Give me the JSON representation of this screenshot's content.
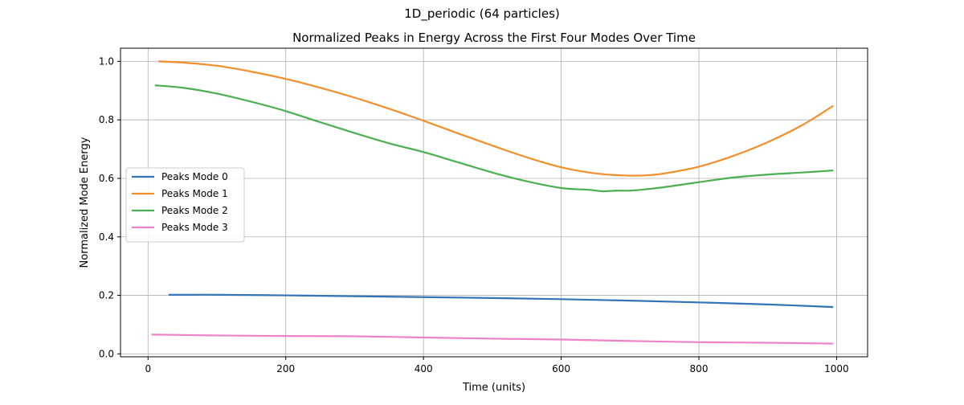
{
  "figure": {
    "suptitle": "1D_periodic (64 particles)"
  },
  "chart_data": {
    "type": "line",
    "title": "Normalized Peaks in Energy Across the First Four Modes Over Time",
    "xlabel": "Time (units)",
    "ylabel": "Normalized Mode Energy",
    "xlim": [
      -40,
      1045
    ],
    "ylim": [
      -0.01,
      1.045
    ],
    "xticks": [
      0,
      200,
      400,
      600,
      800,
      1000
    ],
    "yticks": [
      0.0,
      0.2,
      0.4,
      0.6,
      0.8,
      1.0
    ],
    "xtick_labels": [
      "0",
      "200",
      "400",
      "600",
      "800",
      "1000"
    ],
    "ytick_labels": [
      "0.0",
      "0.2",
      "0.4",
      "0.6",
      "0.8",
      "1.0"
    ],
    "grid": true,
    "legend_position": "center-left",
    "series": [
      {
        "name": "Peaks Mode 0",
        "color": "#3274b5",
        "x": [
          30,
          100,
          200,
          300,
          400,
          500,
          600,
          700,
          800,
          900,
          995
        ],
        "y": [
          0.202,
          0.202,
          0.2,
          0.197,
          0.194,
          0.191,
          0.187,
          0.182,
          0.176,
          0.169,
          0.16
        ]
      },
      {
        "name": "Peaks Mode 1",
        "color": "#f28e2b",
        "x": [
          15,
          50,
          100,
          150,
          200,
          250,
          300,
          350,
          400,
          450,
          500,
          550,
          600,
          650,
          690,
          720,
          750,
          800,
          850,
          900,
          950,
          995
        ],
        "y": [
          1.0,
          0.996,
          0.985,
          0.965,
          0.94,
          0.91,
          0.876,
          0.838,
          0.797,
          0.754,
          0.712,
          0.672,
          0.638,
          0.617,
          0.61,
          0.61,
          0.617,
          0.64,
          0.677,
          0.724,
          0.782,
          0.848
        ]
      },
      {
        "name": "Peaks Mode 2",
        "color": "#4caf50",
        "x": [
          10,
          50,
          100,
          150,
          200,
          250,
          300,
          350,
          400,
          450,
          500,
          550,
          600,
          640,
          660,
          680,
          700,
          720,
          750,
          800,
          850,
          900,
          950,
          995
        ],
        "y": [
          0.918,
          0.91,
          0.89,
          0.862,
          0.83,
          0.792,
          0.755,
          0.72,
          0.69,
          0.655,
          0.62,
          0.59,
          0.567,
          0.561,
          0.556,
          0.558,
          0.558,
          0.562,
          0.57,
          0.587,
          0.603,
          0.613,
          0.62,
          0.627
        ]
      },
      {
        "name": "Peaks Mode 3",
        "color": "#ee82c8",
        "x": [
          5,
          100,
          200,
          300,
          400,
          500,
          600,
          700,
          800,
          900,
          995
        ],
        "y": [
          0.066,
          0.063,
          0.061,
          0.06,
          0.056,
          0.052,
          0.049,
          0.044,
          0.04,
          0.038,
          0.035
        ]
      }
    ]
  }
}
